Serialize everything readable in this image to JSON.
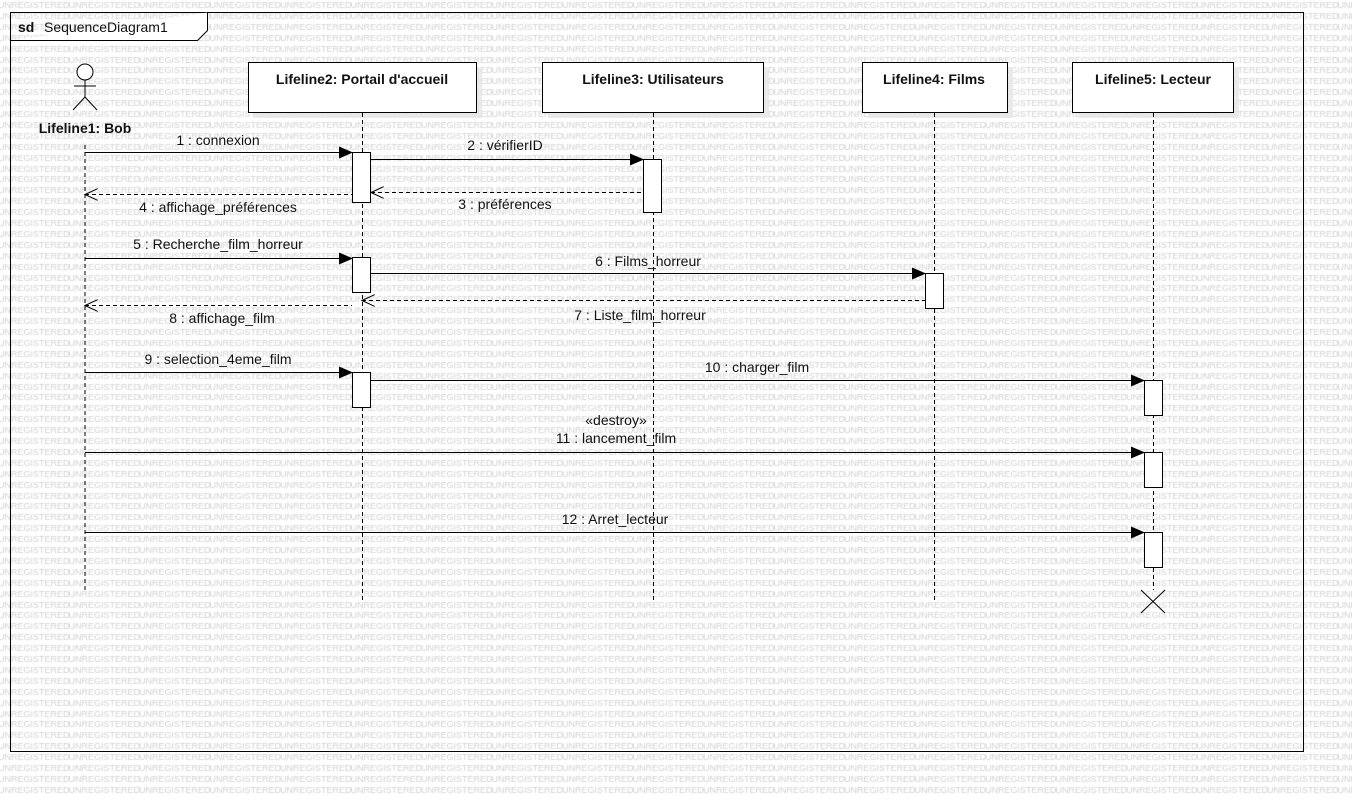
{
  "watermark": "UNREGISTERED",
  "frame": {
    "keyword": "sd",
    "name": "SequenceDiagram1"
  },
  "lifelines": [
    {
      "label": "Lifeline1: Bob",
      "kind": "actor"
    },
    {
      "label": "Lifeline2: Portail d'accueil",
      "kind": "object"
    },
    {
      "label": "Lifeline3: Utilisateurs",
      "kind": "object"
    },
    {
      "label": "Lifeline4: Films",
      "kind": "object"
    },
    {
      "label": "Lifeline5: Lecteur",
      "kind": "object",
      "destroyed": true
    }
  ],
  "messages": [
    {
      "label": "1 : connexion",
      "from": 1,
      "to": 2,
      "type": "sync"
    },
    {
      "label": "2 : vérifierID",
      "from": 2,
      "to": 3,
      "type": "sync"
    },
    {
      "label": "3 : préférences",
      "from": 3,
      "to": 2,
      "type": "reply"
    },
    {
      "label": "4 : affichage_préférences",
      "from": 2,
      "to": 1,
      "type": "reply"
    },
    {
      "label": "5 : Recherche_film_horreur",
      "from": 1,
      "to": 2,
      "type": "sync"
    },
    {
      "label": "6 : Films_horreur",
      "from": 2,
      "to": 4,
      "type": "sync"
    },
    {
      "label": "7 : Liste_film_horreur",
      "from": 4,
      "to": 2,
      "type": "reply"
    },
    {
      "label": "8 : affichage_film",
      "from": 2,
      "to": 1,
      "type": "reply"
    },
    {
      "label": "9 : selection_4eme_film",
      "from": 1,
      "to": 2,
      "type": "sync"
    },
    {
      "label": "10 : charger_film",
      "from": 2,
      "to": 5,
      "type": "sync"
    },
    {
      "label": "11 : lancement_film",
      "from": 1,
      "to": 5,
      "type": "sync",
      "stereotype": "«destroy»"
    },
    {
      "label": "12 : Arret_lecteur",
      "from": 1,
      "to": 5,
      "type": "sync"
    }
  ]
}
